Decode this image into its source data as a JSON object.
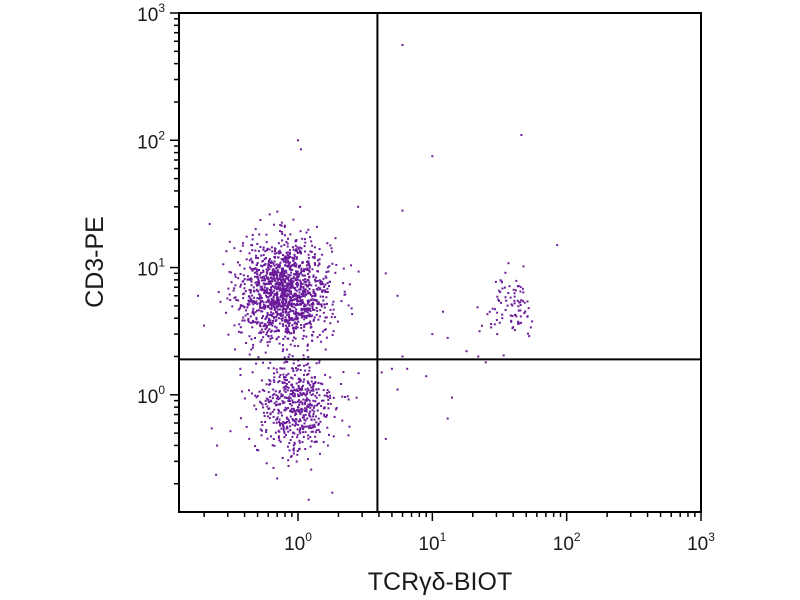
{
  "chart_data": {
    "type": "scatter",
    "xlabel": "TCRγδ-BIOT",
    "ylabel": "CD3-PE",
    "x_scale": "log",
    "y_scale": "log",
    "xlim": [
      0.13,
      1000
    ],
    "ylim": [
      0.12,
      1000
    ],
    "x_ticks": [
      {
        "value": 1,
        "base": "10",
        "exp": "0"
      },
      {
        "value": 10,
        "base": "10",
        "exp": "1"
      },
      {
        "value": 100,
        "base": "10",
        "exp": "2"
      },
      {
        "value": 1000,
        "base": "10",
        "exp": "3"
      }
    ],
    "y_ticks": [
      {
        "value": 1,
        "base": "10",
        "exp": "0"
      },
      {
        "value": 10,
        "base": "10",
        "exp": "1"
      },
      {
        "value": 100,
        "base": "10",
        "exp": "2"
      },
      {
        "value": 1000,
        "base": "10",
        "exp": "3"
      }
    ],
    "quadrant_gates": {
      "x": 3.9,
      "y": 1.9
    },
    "point_color": "#6a1b9a",
    "grid": false,
    "populations": [
      {
        "center_x": 0.8,
        "center_y": 6.5,
        "spread_x_decades": 0.17,
        "spread_y_decades": 0.2,
        "count": 1450
      },
      {
        "center_x": 0.95,
        "center_y": 0.8,
        "spread_x_decades": 0.15,
        "spread_y_decades": 0.19,
        "count": 560
      },
      {
        "center_x": 38,
        "center_y": 5.0,
        "spread_x_decades": 0.1,
        "spread_y_decades": 0.12,
        "count": 90
      }
    ],
    "sparse_points": [
      [
        6,
        560
      ],
      [
        46,
        110
      ],
      [
        10,
        75
      ],
      [
        1.0,
        100
      ],
      [
        1.05,
        85
      ],
      [
        6,
        28
      ],
      [
        85,
        15
      ],
      [
        4.5,
        9
      ],
      [
        5.5,
        6
      ],
      [
        10,
        3
      ],
      [
        12,
        4.5
      ],
      [
        13,
        2.8
      ],
      [
        6,
        2.0
      ],
      [
        5,
        1.6
      ],
      [
        6.5,
        1.6
      ],
      [
        9,
        1.4
      ],
      [
        14,
        0.95
      ],
      [
        13,
        0.65
      ],
      [
        6,
        0.12
      ],
      [
        4.2,
        1.5
      ],
      [
        5.5,
        1.1
      ],
      [
        4.5,
        0.45
      ],
      [
        22,
        2.0
      ],
      [
        25,
        1.8
      ],
      [
        18,
        2.2
      ],
      [
        2.8,
        30
      ],
      [
        1.9,
        17
      ],
      [
        0.22,
        22
      ],
      [
        0.18,
        6
      ],
      [
        0.2,
        3.5
      ],
      [
        0.25,
        0.4
      ],
      [
        1.2,
        0.15
      ],
      [
        1.8,
        0.17
      ],
      [
        0.7,
        0.22
      ]
    ]
  }
}
